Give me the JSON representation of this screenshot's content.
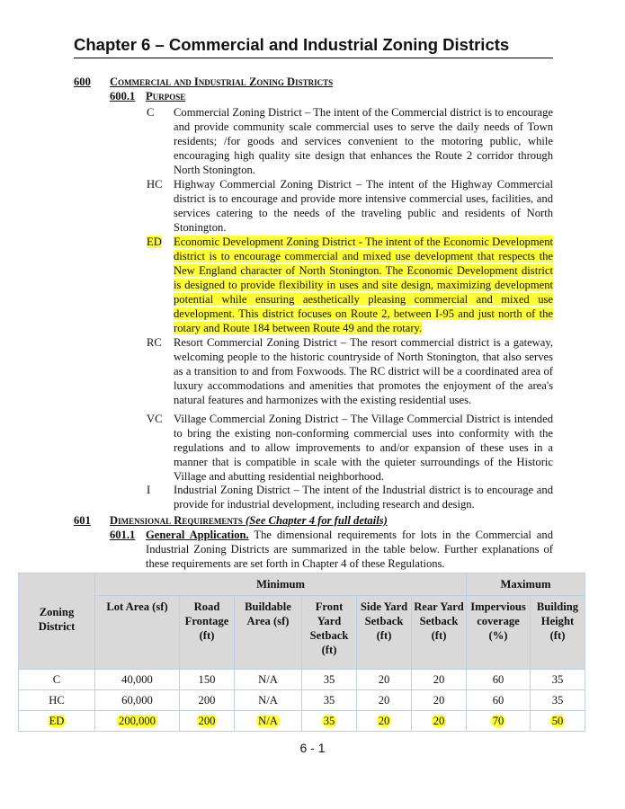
{
  "title": "Chapter 6 – Commercial and Industrial Zoning Districts",
  "section600": {
    "number": "600",
    "heading": "Commercial and Industrial Zoning Districts"
  },
  "section6001": {
    "number": "600.1",
    "heading": "Purpose"
  },
  "districts": [
    {
      "code": "C",
      "text": "Commercial Zoning District – The intent of the Commercial district is to encourage and provide community scale commercial uses to serve the daily needs of Town residents; /for goods and services convenient to the motoring public, while encouraging high quality site design that enhances the Route 2 corridor through North Stonington.",
      "highlighted": false
    },
    {
      "code": "HC",
      "text": "Highway Commercial Zoning District – The intent of the Highway Commercial district is to encourage and provide more intensive commercial uses, facilities, and services catering to the needs of the traveling public and residents of North Stonington.",
      "highlighted": false
    },
    {
      "code": "ED",
      "text": "Economic Development Zoning District - The intent of the Economic Development district is to encourage commercial and mixed use development that respects the New England character of North Stonington. The Economic Development district is designed to provide flexibility in uses and site design, maximizing development potential while ensuring aesthetically pleasing commercial and mixed use development. This district focuses on Route 2, between I-95 and just north of the rotary and Route 184 between Route 49 and the rotary.",
      "highlighted": true
    },
    {
      "code": "RC",
      "text": "Resort Commercial Zoning District – The resort commercial district is a gateway, welcoming people to the historic countryside of North Stonington, that also serves as a transition to and from Foxwoods. The RC district will be a coordinated area of luxury accommodations and amenities that promotes the enjoyment of the area's natural features and harmonizes with the existing residential uses.",
      "highlighted": false
    },
    {
      "code": "VC",
      "text": "Village Commercial Zoning District – The Village Commercial District is intended to bring the existing non-conforming commercial uses into conformity with the regulations and to allow improvements to and/or expansion of these uses in a manner that is compatible in scale with the quieter surroundings of the Historic Village and abutting residential neighborhood.",
      "highlighted": false
    },
    {
      "code": "I",
      "text": "Industrial Zoning District – The intent of the Industrial district is to encourage and provide for industrial development, including research and design.",
      "highlighted": false
    }
  ],
  "section601": {
    "number": "601",
    "heading": "Dimensional Requirements",
    "note": "(See Chapter 4 for full details)"
  },
  "section6011": {
    "number": "601.1",
    "heading": "General Application.",
    "text": "The dimensional requirements for lots in the Commercial and Industrial Zoning Districts are summarized in the table below.  Further explanations of these requirements are set forth in Chapter 4 of these Regulations."
  },
  "table": {
    "group_min": "Minimum",
    "group_max": "Maximum",
    "headers": [
      "Zoning District",
      "Lot Area (sf)",
      "Road Frontage (ft)",
      "Buildable Area (sf)",
      "Front Yard Setback (ft)",
      "Side Yard Setback (ft)",
      "Rear Yard Setback (ft)",
      "Impervious coverage (%)",
      "Building Height (ft)"
    ],
    "rows": [
      {
        "cells": [
          "C",
          "40,000",
          "150",
          "N/A",
          "35",
          "20",
          "20",
          "60",
          "35"
        ],
        "highlighted": false
      },
      {
        "cells": [
          "HC",
          "60,000",
          "200",
          "N/A",
          "35",
          "20",
          "20",
          "60",
          "35"
        ],
        "highlighted": false
      },
      {
        "cells": [
          "ED",
          "200,000",
          "200",
          "N/A",
          "35",
          "20",
          "20",
          "70",
          "50"
        ],
        "highlighted": true
      }
    ],
    "header_bg": "#d9d9d9",
    "highlight": "#ffff33"
  },
  "page_number": "6 - 1"
}
